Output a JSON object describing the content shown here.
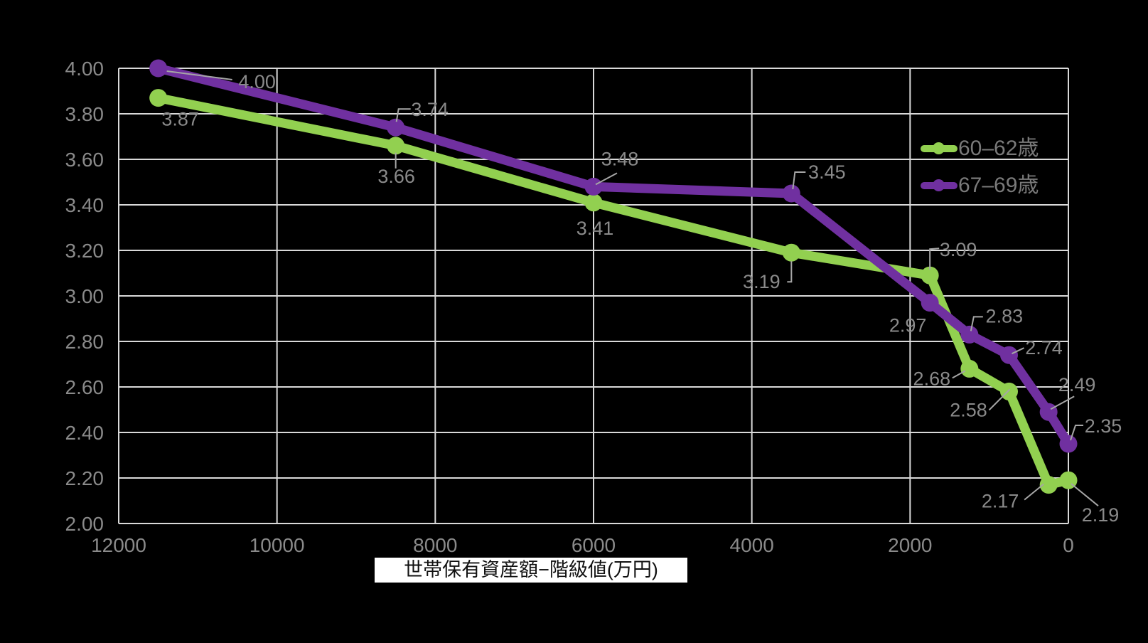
{
  "colors": {
    "background": "#000000",
    "grid": "#d9d9d9",
    "tick_label": "#8a8a8a",
    "data_label": "#8a8a8a",
    "leader": "#a6a6a6",
    "legend_text": "#7a7a7a",
    "axis_title_text": "#111111",
    "axis_title_bg": "#ffffff"
  },
  "chart_data": {
    "type": "line",
    "title": "",
    "grid": true,
    "legend_position": "top-right-inside",
    "x_axis": {
      "title": "世帯保有資産額−階級値(万円)",
      "ticks": [
        "12000",
        "10000",
        "8000",
        "6000",
        "4000",
        "2000",
        "0"
      ],
      "tick_values": [
        12000,
        10000,
        8000,
        6000,
        4000,
        2000,
        0
      ],
      "min": 0,
      "max": 12000,
      "reversed": true
    },
    "y_axis": {
      "title": "",
      "ticks": [
        "4.00",
        "3.80",
        "3.60",
        "3.40",
        "3.20",
        "3.00",
        "2.80",
        "2.60",
        "2.40",
        "2.20",
        "2.00"
      ],
      "tick_values": [
        4.0,
        3.8,
        3.6,
        3.4,
        3.2,
        3.0,
        2.8,
        2.6,
        2.4,
        2.2,
        2.0
      ],
      "min": 2.0,
      "max": 4.0,
      "step": 0.2
    },
    "x": [
      11500,
      8500,
      6000,
      3500,
      1750,
      1250,
      750,
      250,
      0
    ],
    "series": [
      {
        "name": "60–62歳",
        "color": "#92d050",
        "values": [
          3.87,
          3.66,
          3.41,
          3.19,
          3.09,
          2.68,
          2.58,
          2.17,
          2.19
        ],
        "labels": [
          "3.87",
          "3.66",
          "3.41",
          "3.19",
          "3.09",
          "2.68",
          "2.58",
          "2.17",
          "2.19"
        ],
        "label_offsets": [
          [
            31,
            30
          ],
          [
            1,
            43
          ],
          [
            2,
            36
          ],
          [
            -42,
            41
          ],
          [
            40,
            -36
          ],
          [
            -53,
            14
          ],
          [
            -57,
            26
          ],
          [
            -68,
            23
          ],
          [
            45,
            49
          ]
        ],
        "leaders": [
          null,
          [
            [
              0,
              10
            ],
            [
              0,
              32
            ]
          ],
          null,
          [
            [
              -6,
              41
            ],
            [
              0,
              41
            ],
            [
              0,
              12
            ]
          ],
          [
            [
              0,
              -8
            ],
            [
              0,
              -37
            ],
            [
              13,
              -38
            ]
          ],
          [
            [
              -24,
              13
            ],
            [
              -6,
              3
            ]
          ],
          [
            [
              -28,
              26
            ],
            [
              1,
              -3
            ]
          ],
          [
            [
              -34,
              21
            ],
            [
              -7,
              -1
            ]
          ],
          [
            [
              4,
              5
            ],
            [
              42,
              36
            ]
          ]
        ]
      },
      {
        "name": "67–69歳",
        "color": "#7030a0",
        "values": [
          4.0,
          3.74,
          3.48,
          3.45,
          2.97,
          2.83,
          2.74,
          2.49,
          2.35
        ],
        "labels": [
          "4.00",
          "3.74",
          "3.48",
          "3.45",
          "2.97",
          "2.83",
          "2.74",
          "2.49",
          "2.35"
        ],
        "label_offsets": [
          [
            139,
            19
          ],
          [
            48,
            -25
          ],
          [
            37,
            -39
          ],
          [
            50,
            -30
          ],
          [
            -31,
            32
          ],
          [
            49,
            -26
          ],
          [
            49,
            -10
          ],
          [
            40,
            -38
          ],
          [
            49,
            -25
          ]
        ],
        "leaders": [
          [
            [
              12,
              4
            ],
            [
              104,
              16
            ]
          ],
          [
            [
              1,
              -8
            ],
            [
              4,
              -26
            ],
            [
              21,
              -26
            ]
          ],
          [
            [
              3,
              -3
            ],
            [
              33,
              -19
            ]
          ],
          [
            [
              2,
              -6
            ],
            [
              5,
              -30
            ],
            [
              20,
              -30
            ]
          ],
          null,
          [
            [
              2,
              -5
            ],
            [
              6,
              -25
            ],
            [
              19,
              -25
            ]
          ],
          [
            [
              4,
              -2
            ],
            [
              21,
              -10
            ]
          ],
          [
            [
              3,
              -4
            ],
            [
              36,
              -22
            ]
          ],
          [
            [
              3,
              -5
            ],
            [
              10,
              -26
            ],
            [
              21,
              -26
            ]
          ]
        ]
      }
    ]
  }
}
